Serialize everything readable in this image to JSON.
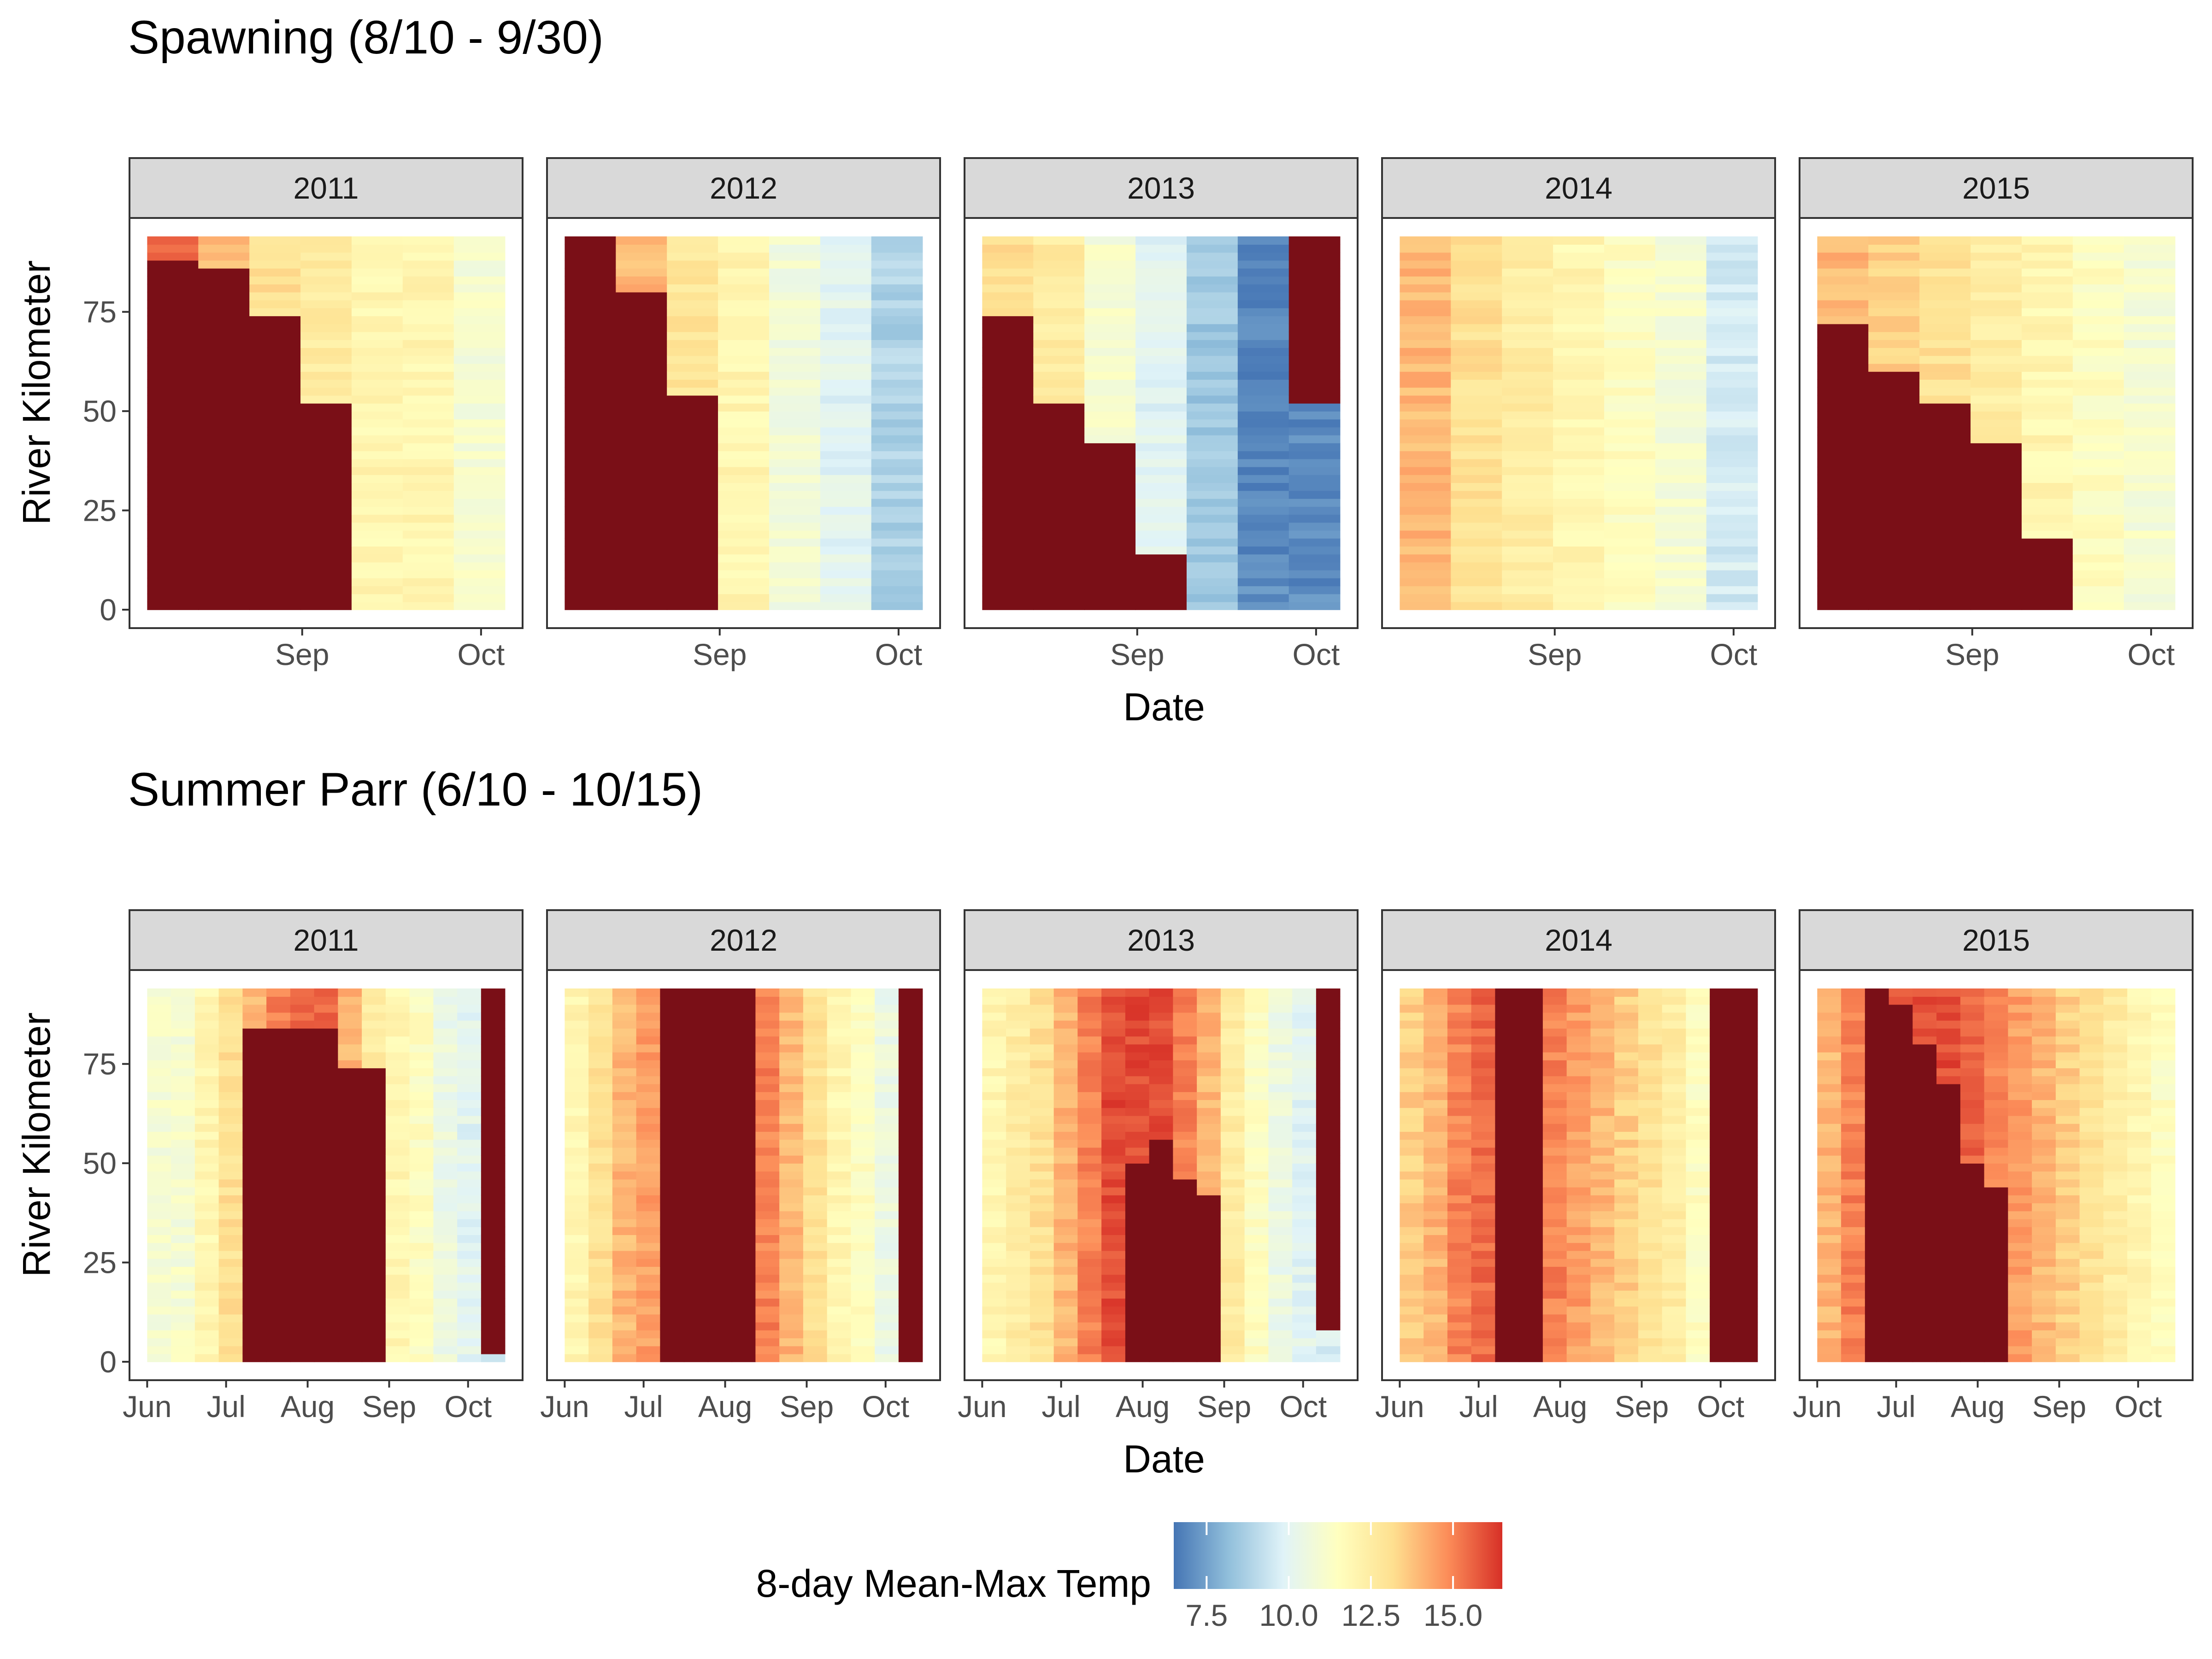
{
  "chart_data": [
    {
      "type": "heatmap",
      "title": "Spawning (8/10 - 9/30)",
      "xlabel": "Date",
      "ylabel": "River Kilometer",
      "ylim": [
        0,
        94
      ],
      "y_ticks": [
        "0",
        "25",
        "50",
        "75"
      ],
      "y_tick_values": [
        0,
        25,
        50,
        75
      ],
      "x_range": [
        "08-06",
        "10-05"
      ],
      "x_ticks": [
        "Sep",
        "Oct"
      ],
      "x_tick_dates": [
        "09-01",
        "10-01"
      ],
      "periods": 7,
      "panels": [
        {
          "year": "2011",
          "surface": [
            15.5,
            14,
            13,
            12.5,
            12,
            12,
            11
          ],
          "dark": [
            [
              0,
              88
            ],
            [
              0,
              86
            ],
            [
              0,
              74
            ],
            [
              0,
              52
            ],
            [
              0,
              0
            ],
            [
              0,
              0
            ],
            [
              0,
              0
            ]
          ]
        },
        {
          "year": "2012",
          "surface": [
            16,
            14,
            12.8,
            12,
            10.8,
            10,
            8.8
          ],
          "dark": [
            [
              0,
              94
            ],
            [
              0,
              80
            ],
            [
              0,
              54
            ],
            [
              0,
              0
            ],
            [
              0,
              0
            ],
            [
              0,
              0
            ],
            [
              0,
              0
            ]
          ]
        },
        {
          "year": "2013",
          "surface": [
            13,
            12.5,
            11,
            10,
            8.5,
            7,
            7
          ],
          "dark": [
            [
              0,
              73
            ],
            [
              0,
              52
            ],
            [
              0,
              42
            ],
            [
              0,
              14
            ],
            [
              0,
              0
            ],
            [
              0,
              0
            ],
            [
              52,
              94
            ]
          ]
        },
        {
          "year": "2014",
          "surface": [
            14,
            13,
            12.5,
            12,
            11.5,
            11,
            9.6
          ],
          "dark": [
            [
              0,
              0
            ],
            [
              0,
              0
            ],
            [
              0,
              0
            ],
            [
              0,
              0
            ],
            [
              0,
              0
            ],
            [
              0,
              0
            ],
            [
              0,
              0
            ]
          ]
        },
        {
          "year": "2015",
          "surface": [
            14,
            13.5,
            13,
            12.5,
            12,
            11.5,
            11
          ],
          "dark": [
            [
              0,
              72
            ],
            [
              0,
              60
            ],
            [
              0,
              52
            ],
            [
              0,
              42
            ],
            [
              0,
              17
            ],
            [
              0,
              0
            ],
            [
              0,
              0
            ]
          ]
        }
      ]
    },
    {
      "type": "heatmap",
      "title": "Summer Parr (6/10 - 10/15)",
      "xlabel": "Date",
      "ylabel": "River Kilometer",
      "ylim": [
        0,
        94
      ],
      "y_ticks": [
        "0",
        "25",
        "50",
        "75"
      ],
      "y_tick_values": [
        0,
        25,
        50,
        75
      ],
      "x_range": [
        "06-01",
        "10-15"
      ],
      "x_ticks": [
        "Jun",
        "Jul",
        "Aug",
        "Sep",
        "Oct"
      ],
      "x_tick_dates": [
        "06-01",
        "07-01",
        "08-01",
        "09-01",
        "10-01"
      ],
      "periods": 15,
      "panels": [
        {
          "year": "2011",
          "surface": [
            11,
            11,
            12,
            13,
            14,
            15,
            15.5,
            15.5,
            14,
            12.5,
            12,
            11.5,
            10.5,
            10,
            9.5
          ],
          "dark": [
            [
              0,
              0
            ],
            [
              0,
              0
            ],
            [
              0,
              0
            ],
            [
              0,
              0
            ],
            [
              0,
              83
            ],
            [
              0,
              83
            ],
            [
              0,
              83
            ],
            [
              0,
              83
            ],
            [
              0,
              74
            ],
            [
              0,
              74
            ],
            [
              0,
              0
            ],
            [
              0,
              0
            ],
            [
              0,
              0
            ],
            [
              0,
              0
            ],
            [
              2,
              94
            ]
          ]
        },
        {
          "year": "2012",
          "surface": [
            12,
            13,
            14,
            14.5,
            16,
            16,
            16,
            16,
            15,
            14,
            13,
            12,
            11.5,
            10.5,
            9.5
          ],
          "dark": [
            [
              0,
              0
            ],
            [
              0,
              0
            ],
            [
              0,
              0
            ],
            [
              0,
              0
            ],
            [
              0,
              94
            ],
            [
              0,
              94
            ],
            [
              0,
              94
            ],
            [
              0,
              94
            ],
            [
              0,
              0
            ],
            [
              0,
              0
            ],
            [
              0,
              0
            ],
            [
              0,
              0
            ],
            [
              0,
              0
            ],
            [
              0,
              0
            ],
            [
              0,
              94
            ]
          ]
        },
        {
          "year": "2013",
          "surface": [
            12,
            12.5,
            13,
            14,
            15,
            16,
            16,
            16,
            15,
            14,
            12.5,
            11.5,
            10.5,
            10,
            9.8
          ],
          "dark": [
            [
              0,
              0
            ],
            [
              0,
              0
            ],
            [
              0,
              0
            ],
            [
              0,
              0
            ],
            [
              0,
              0
            ],
            [
              0,
              0
            ],
            [
              0,
              50
            ],
            [
              0,
              55
            ],
            [
              0,
              45
            ],
            [
              0,
              42
            ],
            [
              0,
              0
            ],
            [
              0,
              0
            ],
            [
              0,
              0
            ],
            [
              0,
              0
            ],
            [
              9,
              94
            ]
          ]
        },
        {
          "year": "2014",
          "surface": [
            13.5,
            14,
            15,
            15.5,
            16,
            16,
            15,
            14.5,
            14,
            13.5,
            13,
            12.5,
            11.5,
            11,
            10.5
          ],
          "dark": [
            [
              0,
              0
            ],
            [
              0,
              0
            ],
            [
              0,
              0
            ],
            [
              0,
              0
            ],
            [
              0,
              94
            ],
            [
              0,
              94
            ],
            [
              0,
              0
            ],
            [
              0,
              0
            ],
            [
              0,
              0
            ],
            [
              0,
              0
            ],
            [
              0,
              0
            ],
            [
              0,
              0
            ],
            [
              0,
              0
            ],
            [
              0,
              94
            ],
            [
              0,
              94
            ]
          ]
        },
        {
          "year": "2015",
          "surface": [
            14,
            15,
            16,
            16,
            16,
            16,
            15.5,
            15,
            14.5,
            14,
            13.5,
            13,
            12.5,
            12,
            11.5
          ],
          "dark": [
            [
              0,
              0
            ],
            [
              0,
              0
            ],
            [
              0,
              94
            ],
            [
              0,
              90
            ],
            [
              0,
              80
            ],
            [
              0,
              70
            ],
            [
              0,
              50
            ],
            [
              0,
              44
            ],
            [
              0,
              0
            ],
            [
              0,
              0
            ],
            [
              0,
              0
            ],
            [
              0,
              0
            ],
            [
              0,
              0
            ],
            [
              0,
              0
            ],
            [
              0,
              0
            ]
          ]
        }
      ]
    }
  ],
  "legend": {
    "title": "8-day Mean-Max Temp",
    "range": [
      6.5,
      16.5
    ],
    "ticks": [
      "7.5",
      "10.0",
      "12.5",
      "15.0"
    ],
    "tick_values": [
      7.5,
      10.0,
      12.5,
      15.0
    ],
    "colors": [
      "#4575b4",
      "#91bfdb",
      "#e0f3f8",
      "#ffffbf",
      "#fee090",
      "#fc8d59",
      "#d73027"
    ],
    "dark_color": "#7a0f17"
  }
}
